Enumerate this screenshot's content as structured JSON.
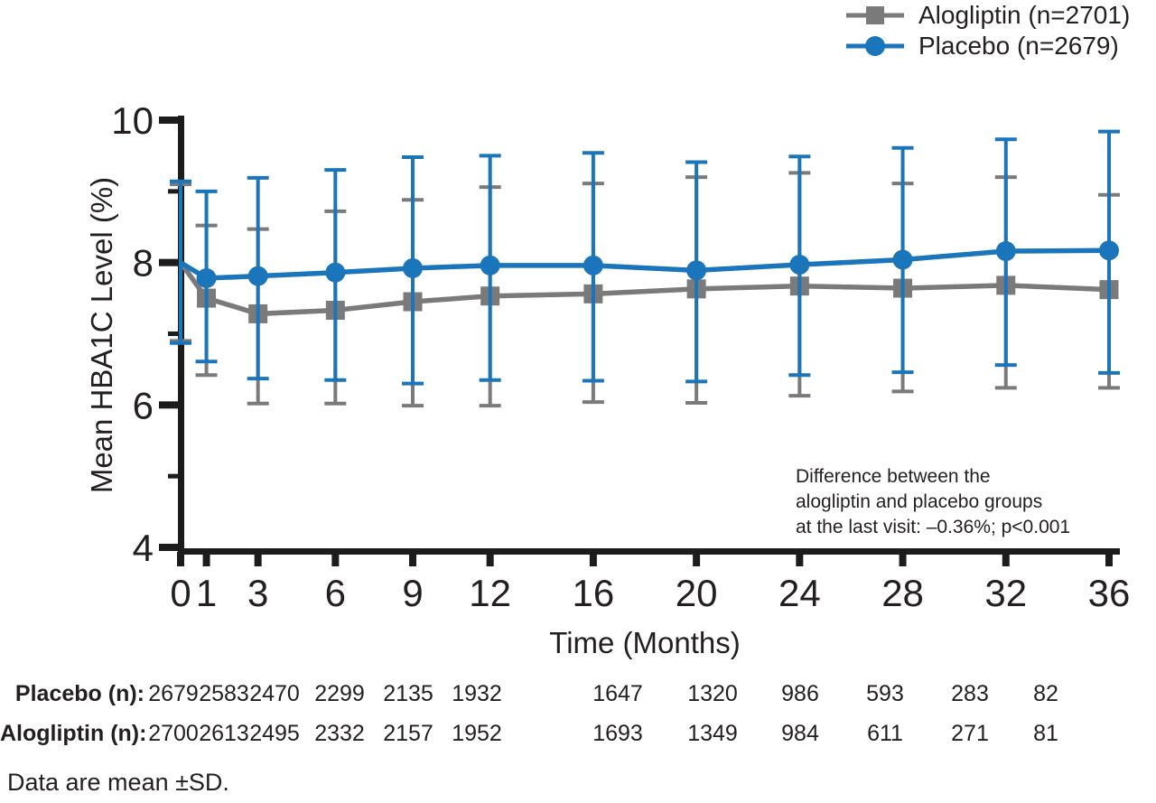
{
  "chart_data": {
    "type": "line",
    "title": "",
    "xlabel": "Time (Months)",
    "ylabel": "Mean HBA1C Level (%)",
    "xlim": [
      0,
      36
    ],
    "ylim": [
      4,
      10
    ],
    "x_ticks": [
      0,
      1,
      3,
      6,
      9,
      12,
      16,
      20,
      24,
      28,
      32,
      36
    ],
    "y_ticks_major": [
      4,
      6,
      8,
      10
    ],
    "y_ticks_minor": [
      5,
      7,
      9
    ],
    "grid": false,
    "legend_position": "top-right",
    "error_bars": "mean ± SD",
    "x": [
      0,
      1,
      3,
      6,
      9,
      12,
      16,
      20,
      24,
      28,
      32,
      36
    ],
    "series": [
      {
        "name": "Alogliptin (n=2701)",
        "marker": "square",
        "color": "#7a7a7a",
        "mean": [
          8.0,
          7.5,
          7.28,
          7.33,
          7.45,
          7.53,
          7.56,
          7.63,
          7.67,
          7.64,
          7.68,
          7.62
        ],
        "upper": [
          9.1,
          8.52,
          8.47,
          8.72,
          8.88,
          9.06,
          9.11,
          9.2,
          9.26,
          9.11,
          9.2,
          8.95
        ],
        "lower": [
          6.9,
          6.42,
          6.02,
          6.02,
          5.99,
          5.99,
          6.04,
          6.03,
          6.13,
          6.19,
          6.24,
          6.24
        ]
      },
      {
        "name": "Placebo (n=2679)",
        "marker": "circle",
        "color": "#1b75bb",
        "mean": [
          8.0,
          7.78,
          7.81,
          7.86,
          7.92,
          7.96,
          7.96,
          7.89,
          7.97,
          8.04,
          8.16,
          8.17
        ],
        "upper": [
          9.14,
          9.0,
          9.19,
          9.3,
          9.48,
          9.5,
          9.54,
          9.41,
          9.49,
          9.61,
          9.73,
          9.84
        ],
        "lower": [
          6.87,
          6.61,
          6.37,
          6.35,
          6.3,
          6.35,
          6.34,
          6.33,
          6.42,
          6.46,
          6.56,
          6.45
        ]
      }
    ],
    "annotation": [
      "Difference between the",
      "alogliptin and placebo groups",
      "at the last visit: –0.36%; p<0.001"
    ]
  },
  "risk_table": {
    "rows": [
      {
        "label": "Placebo (n):",
        "values": [
          "2679",
          "2583",
          "2470",
          "2299",
          "2135",
          "1932",
          "1647",
          "1320",
          "986",
          "593",
          "283",
          "82"
        ]
      },
      {
        "label": "Alogliptin (n):",
        "values": [
          "2700",
          "2613",
          "2495",
          "2332",
          "2157",
          "1952",
          "1693",
          "1349",
          "984",
          "611",
          "271",
          "81"
        ]
      }
    ]
  },
  "figure": {
    "footnote": "Data are mean ±SD.",
    "axis_color": "#1c1c1c",
    "text_color": "#231f20"
  }
}
